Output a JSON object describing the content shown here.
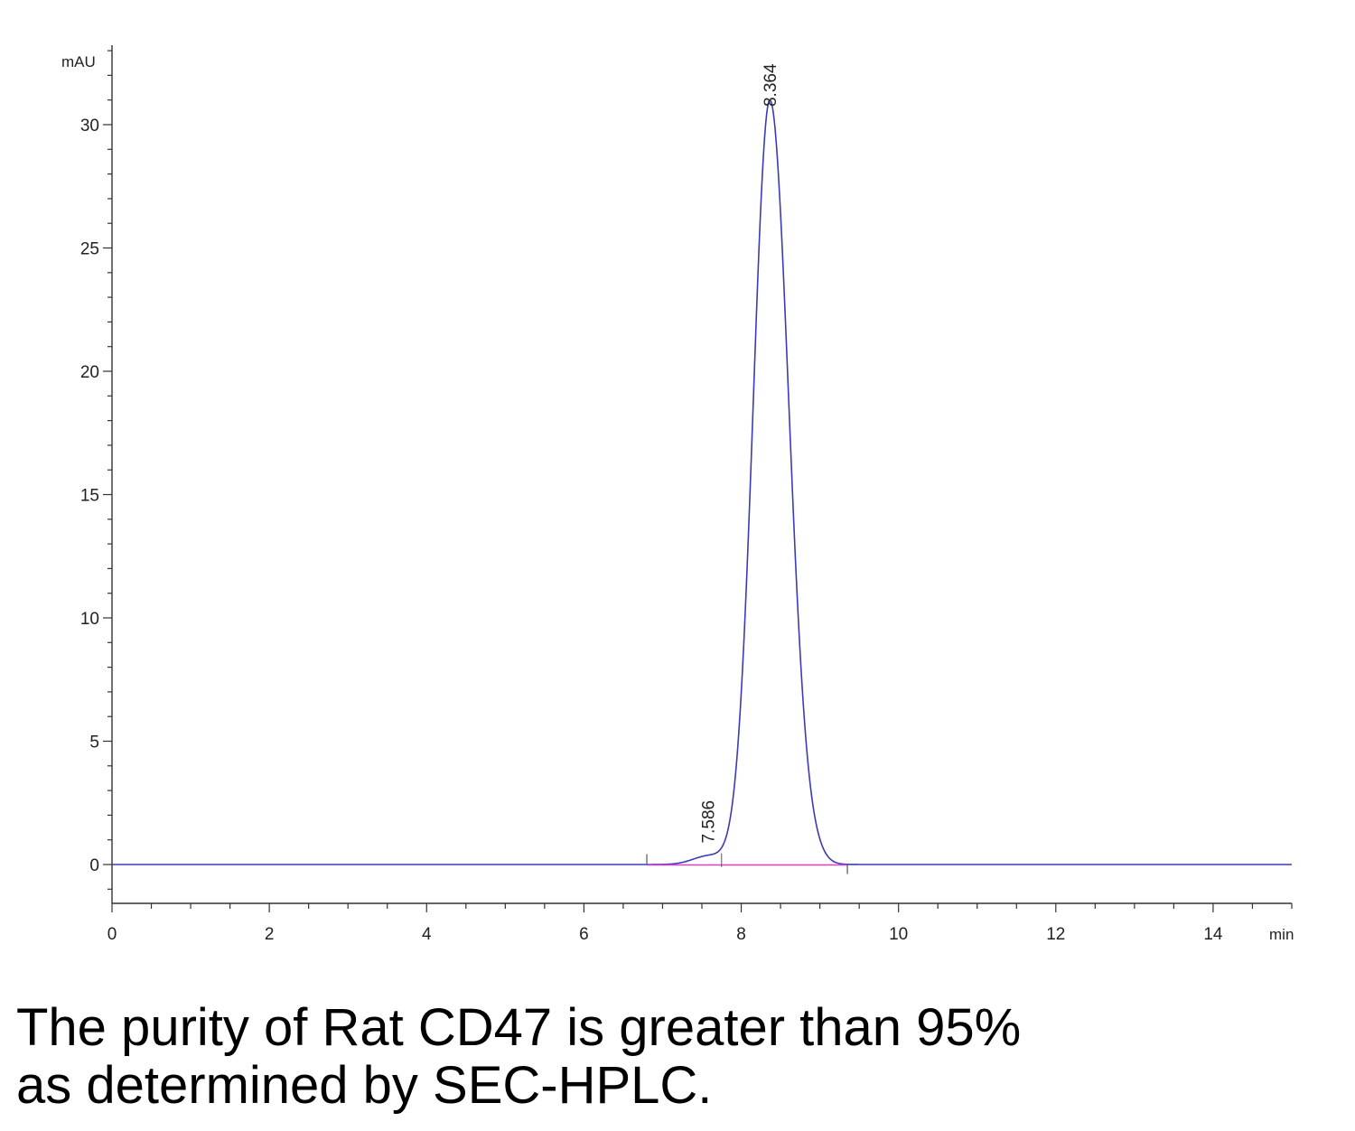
{
  "chart_data": {
    "type": "line",
    "ylabel": "mAU",
    "xlabel": "min",
    "xlim": [
      0,
      15
    ],
    "ylim": [
      -1.6,
      33
    ],
    "x_ticks": [
      0,
      2,
      4,
      6,
      8,
      10,
      12,
      14
    ],
    "y_ticks": [
      0,
      5,
      10,
      15,
      20,
      25,
      30
    ],
    "grid": false,
    "legend": "none",
    "series": [
      {
        "color": "#3b3bb8",
        "peaks": [
          {
            "retention_time": 7.586,
            "height": 0.35,
            "label": "7.586"
          },
          {
            "retention_time": 8.364,
            "height": 31.0,
            "label": "8.364"
          }
        ]
      }
    ],
    "baseline": {
      "color": "#e040c8",
      "start": 6.8,
      "end": 9.35
    }
  },
  "caption": {
    "line1": "The purity of Rat CD47 is greater than 95%",
    "line2": "as determined by SEC-HPLC."
  }
}
